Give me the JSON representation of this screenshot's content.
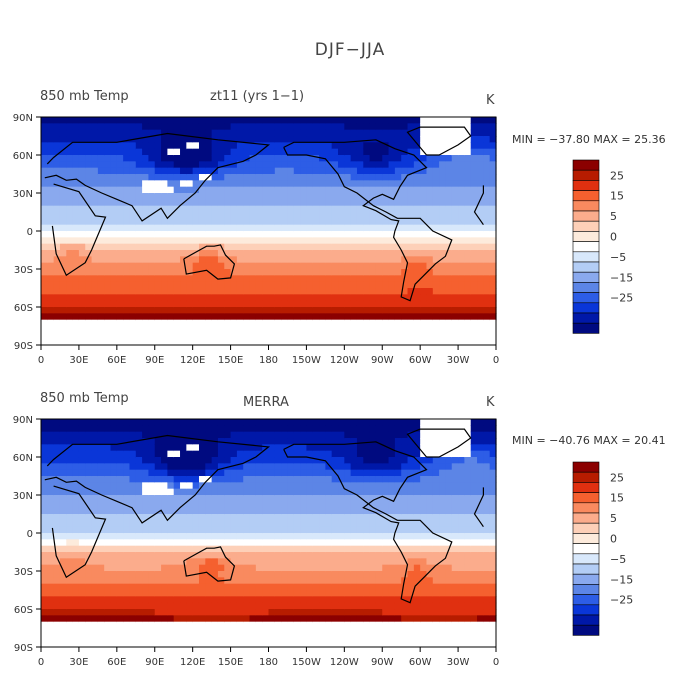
{
  "title": "DJF−JJA",
  "units": "K",
  "x_ticks": [
    "0",
    "30E",
    "60E",
    "90E",
    "120E",
    "150E",
    "180",
    "150W",
    "120W",
    "90W",
    "60W",
    "30W",
    "0"
  ],
  "y_ticks": [
    "90N",
    "60N",
    "30N",
    "0",
    "30S",
    "60S",
    "90S"
  ],
  "colorbar_labels": [
    "25",
    "15",
    "5",
    "0",
    "−5",
    "−15",
    "−25"
  ],
  "colors": [
    "#8b0000",
    "#b71c00",
    "#e03010",
    "#f5602f",
    "#f98a5f",
    "#fbac8c",
    "#fdd0b8",
    "#fdebdc",
    "#ffffff",
    "#d8e8fb",
    "#b3cdf5",
    "#8aa9ee",
    "#5c85e6",
    "#2d5de6",
    "#0a36d8",
    "#0018a8",
    "#000a80"
  ],
  "panels": [
    {
      "id": "top",
      "variable_label": "850 mb Temp",
      "dataset_label": "zt11 (yrs 1−1)",
      "units": "K",
      "min_max": "MIN = −37.80 MAX =  25.36"
    },
    {
      "id": "bottom",
      "variable_label": "850 mb Temp",
      "dataset_label": "MERRA",
      "units": "K",
      "min_max": "MIN = −40.76 MAX =  20.41"
    }
  ]
}
